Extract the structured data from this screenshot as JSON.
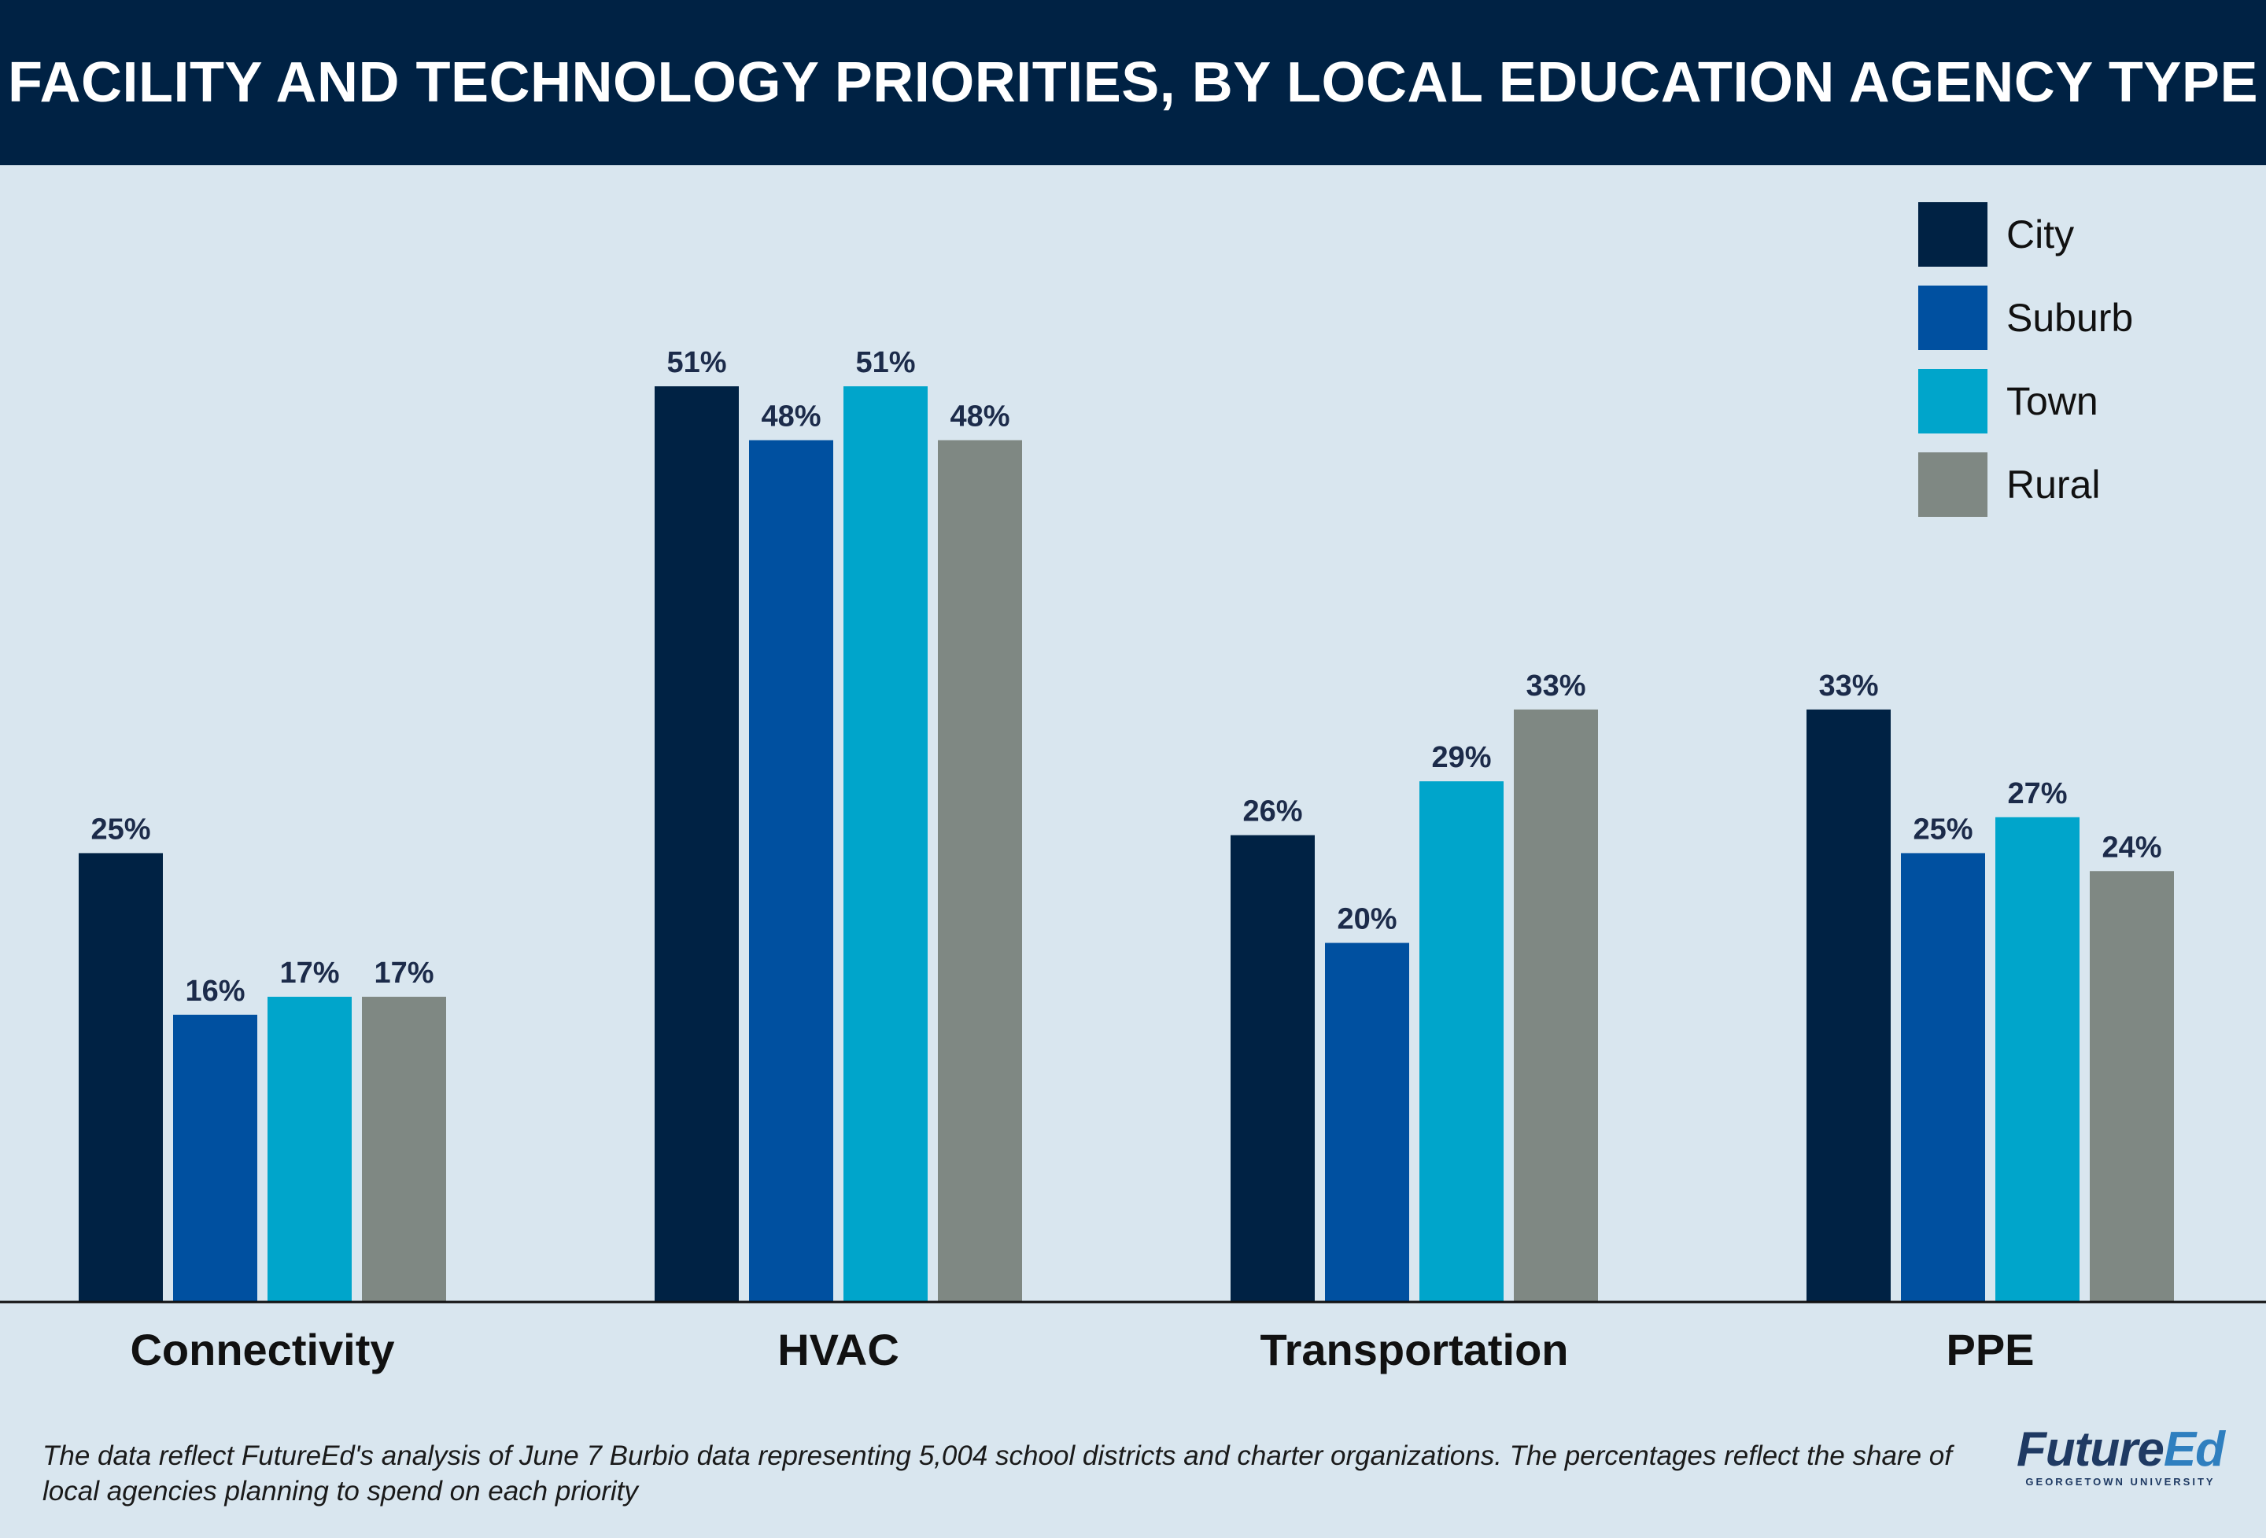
{
  "header": {
    "title": "FACILITY AND TECHNOLOGY PRIORITIES, BY LOCAL EDUCATION AGENCY TYPE"
  },
  "chart_data": {
    "type": "bar",
    "title": "FACILITY AND TECHNOLOGY PRIORITIES, BY LOCAL EDUCATION AGENCY TYPE",
    "categories": [
      "Connectivity",
      "HVAC",
      "Transportation",
      "PPE"
    ],
    "series": [
      {
        "name": "City",
        "values": [
          25,
          51,
          26,
          33
        ],
        "color": "#002244"
      },
      {
        "name": "Suburb",
        "values": [
          16,
          48,
          20,
          25
        ],
        "color": "#0050a0"
      },
      {
        "name": "Town",
        "values": [
          17,
          51,
          29,
          27
        ],
        "color": "#00a5cb"
      },
      {
        "name": "Rural",
        "values": [
          17,
          48,
          33,
          24
        ],
        "color": "#7f8883"
      }
    ],
    "value_suffix": "%",
    "ylim": [
      0,
      62
    ],
    "grid": false,
    "legend": "top-right",
    "xlabel": "",
    "ylabel": ""
  },
  "footnote": "The data reflect FutureEd's analysis of June 7 Burbio data representing 5,004 school districts and charter organizations. The percentages reflect the share of local agencies planning to spend on each priority",
  "logo": {
    "brand_main": "Future",
    "brand_accent": "Ed",
    "subtitle": "GEORGETOWN UNIVERSITY"
  },
  "colors": {
    "header_bg": "#002244",
    "background": "#d9e6ef",
    "label_text": "#1c2b4a"
  }
}
